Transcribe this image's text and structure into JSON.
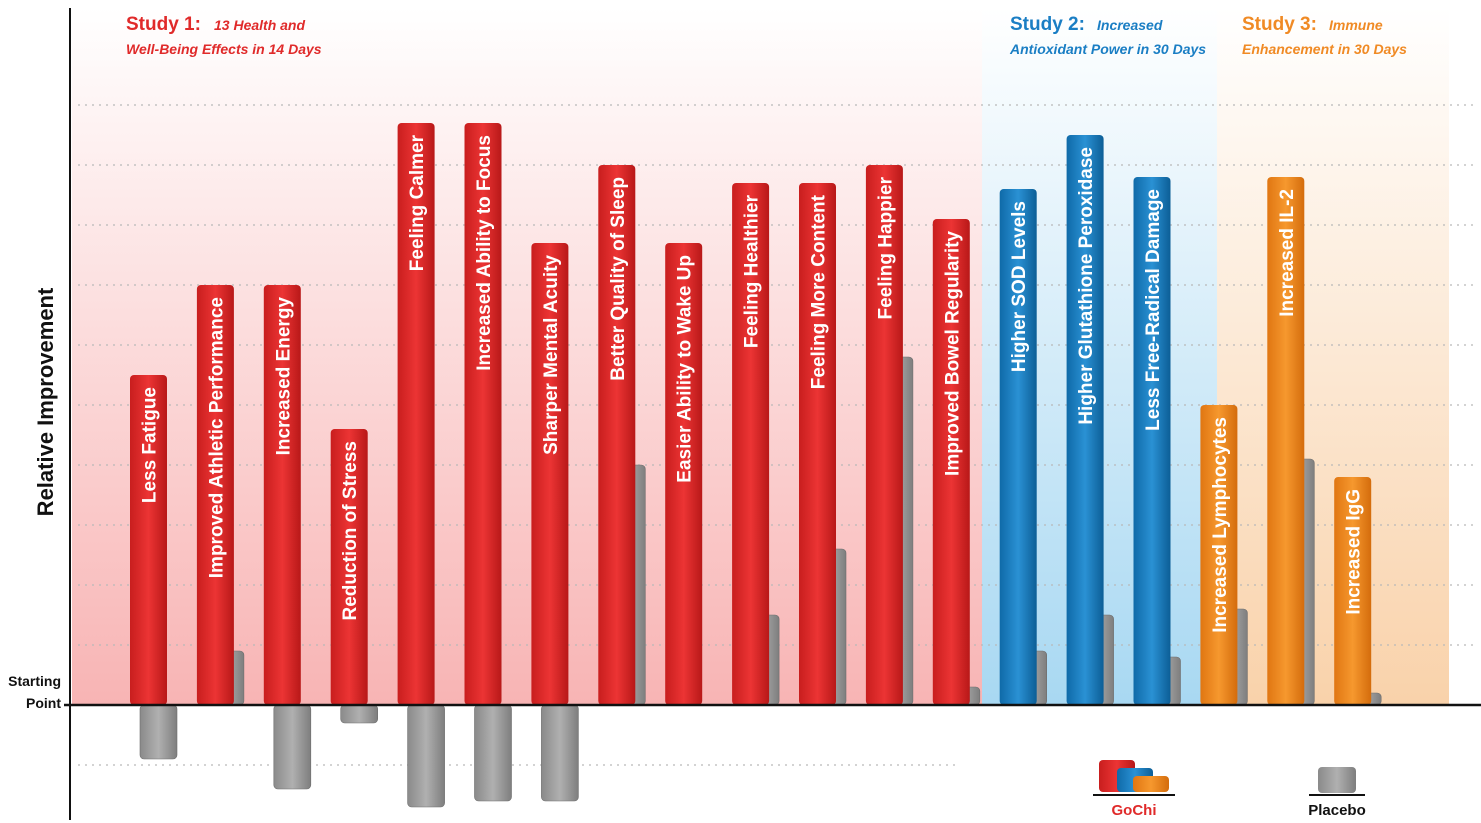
{
  "chart_data": {
    "type": "bar",
    "ylabel": "Relative Improvement",
    "baseline_label": [
      "Starting",
      "Point"
    ],
    "ylim": [
      -4,
      13
    ],
    "grid": true,
    "legend": [
      {
        "name": "GoChi",
        "color": "#e02a2a"
      },
      {
        "name": "Placebo",
        "color": "#9a9a9a"
      }
    ],
    "studies": [
      {
        "title": "Study 1:",
        "subtitle": [
          "13 Health and",
          "Well-Being Effects in 14 Days"
        ],
        "color": "#e02a2a"
      },
      {
        "title": "Study 2:",
        "subtitle": [
          "Increased",
          "Antioxidant Power in 30 Days"
        ],
        "color": "#1a7ec4"
      },
      {
        "title": "Study 3:",
        "subtitle": [
          "Immune",
          "Enhancement in 30 Days"
        ],
        "color": "#f08a24"
      }
    ],
    "categories": [
      "Less Fatigue",
      "Improved Athletic Performance",
      "Increased Energy",
      "Reduction of Stress",
      "Feeling Calmer",
      "Increased Ability to Focus",
      "Sharper Mental Acuity",
      "Better Quality of Sleep",
      "Easier Ability to Wake Up",
      "Feeling Healthier",
      "Feeling More Content",
      "Feeling Happier",
      "Improved Bowel Regularity",
      "Higher SOD Levels",
      "Higher Glutathione Peroxidase",
      "Less Free-Radical Damage",
      "Increased Lymphocytes",
      "Increased IL-2",
      "Increased IgG"
    ],
    "study_index": [
      0,
      0,
      0,
      0,
      0,
      0,
      0,
      0,
      0,
      0,
      0,
      0,
      0,
      1,
      1,
      1,
      2,
      2,
      2
    ],
    "series": [
      {
        "name": "GoChi",
        "values": [
          5.5,
          7.0,
          7.0,
          4.6,
          9.7,
          9.7,
          7.7,
          9.0,
          7.7,
          8.7,
          8.7,
          9.0,
          8.1,
          8.6,
          9.5,
          8.8,
          5.0,
          8.8,
          3.8
        ]
      },
      {
        "name": "Placebo",
        "values": [
          -0.9,
          0.9,
          -1.4,
          -0.3,
          -1.7,
          -1.6,
          -1.6,
          4.0,
          0,
          1.5,
          2.6,
          5.8,
          0.3,
          0.9,
          1.5,
          0.8,
          1.6,
          4.1,
          0.2
        ]
      }
    ]
  }
}
